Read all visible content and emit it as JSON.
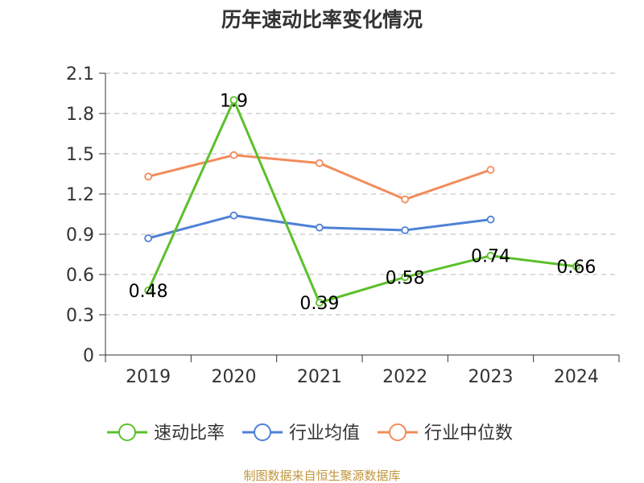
{
  "chart_data": {
    "type": "line",
    "title": "历年速动比率变化情况",
    "categories": [
      "2019",
      "2020",
      "2021",
      "2022",
      "2023",
      "2024"
    ],
    "ylim": [
      0,
      2.1
    ],
    "yticks": [
      "0",
      "0.3",
      "0.6",
      "0.9",
      "1.2",
      "1.5",
      "1.8",
      "2.1"
    ],
    "grid": true,
    "legend_position": "bottom",
    "series": [
      {
        "name": "速动比率",
        "color": "#5cc02a",
        "values": [
          0.48,
          1.9,
          0.39,
          0.58,
          0.74,
          0.66
        ],
        "labels": [
          "0.48",
          "1.9",
          "0.39",
          "0.58",
          "0.74",
          "0.66"
        ]
      },
      {
        "name": "行业均值",
        "color": "#4f81d6",
        "values": [
          0.87,
          1.04,
          0.95,
          0.93,
          1.01,
          null
        ]
      },
      {
        "name": "行业中位数",
        "color": "#f28c5b",
        "values": [
          1.33,
          1.49,
          1.43,
          1.16,
          1.38,
          null
        ]
      }
    ]
  },
  "source_text": "制图数据来自恒生聚源数据库"
}
